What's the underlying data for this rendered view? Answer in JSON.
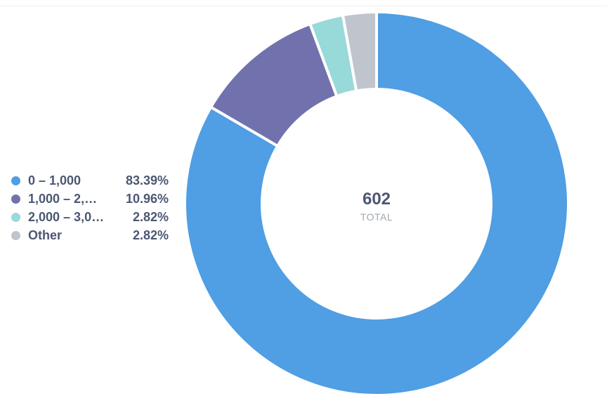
{
  "chart_data": {
    "type": "pie",
    "total": "602",
    "total_label": "TOTAL",
    "slices": [
      {
        "label": "0 – 1,000",
        "percent_label": "83.39%",
        "value": 83.39,
        "color": "#509ee3"
      },
      {
        "label": "1,000 – 2,…",
        "percent_label": "10.96%",
        "value": 10.96,
        "color": "#7172ad"
      },
      {
        "label": "2,000 – 3,0…",
        "percent_label": "2.82%",
        "value": 2.82,
        "color": "#98d9d9"
      },
      {
        "label": "Other",
        "percent_label": "2.82%",
        "value": 2.82,
        "color": "#c0c4cc"
      }
    ],
    "legend_position": "left"
  }
}
